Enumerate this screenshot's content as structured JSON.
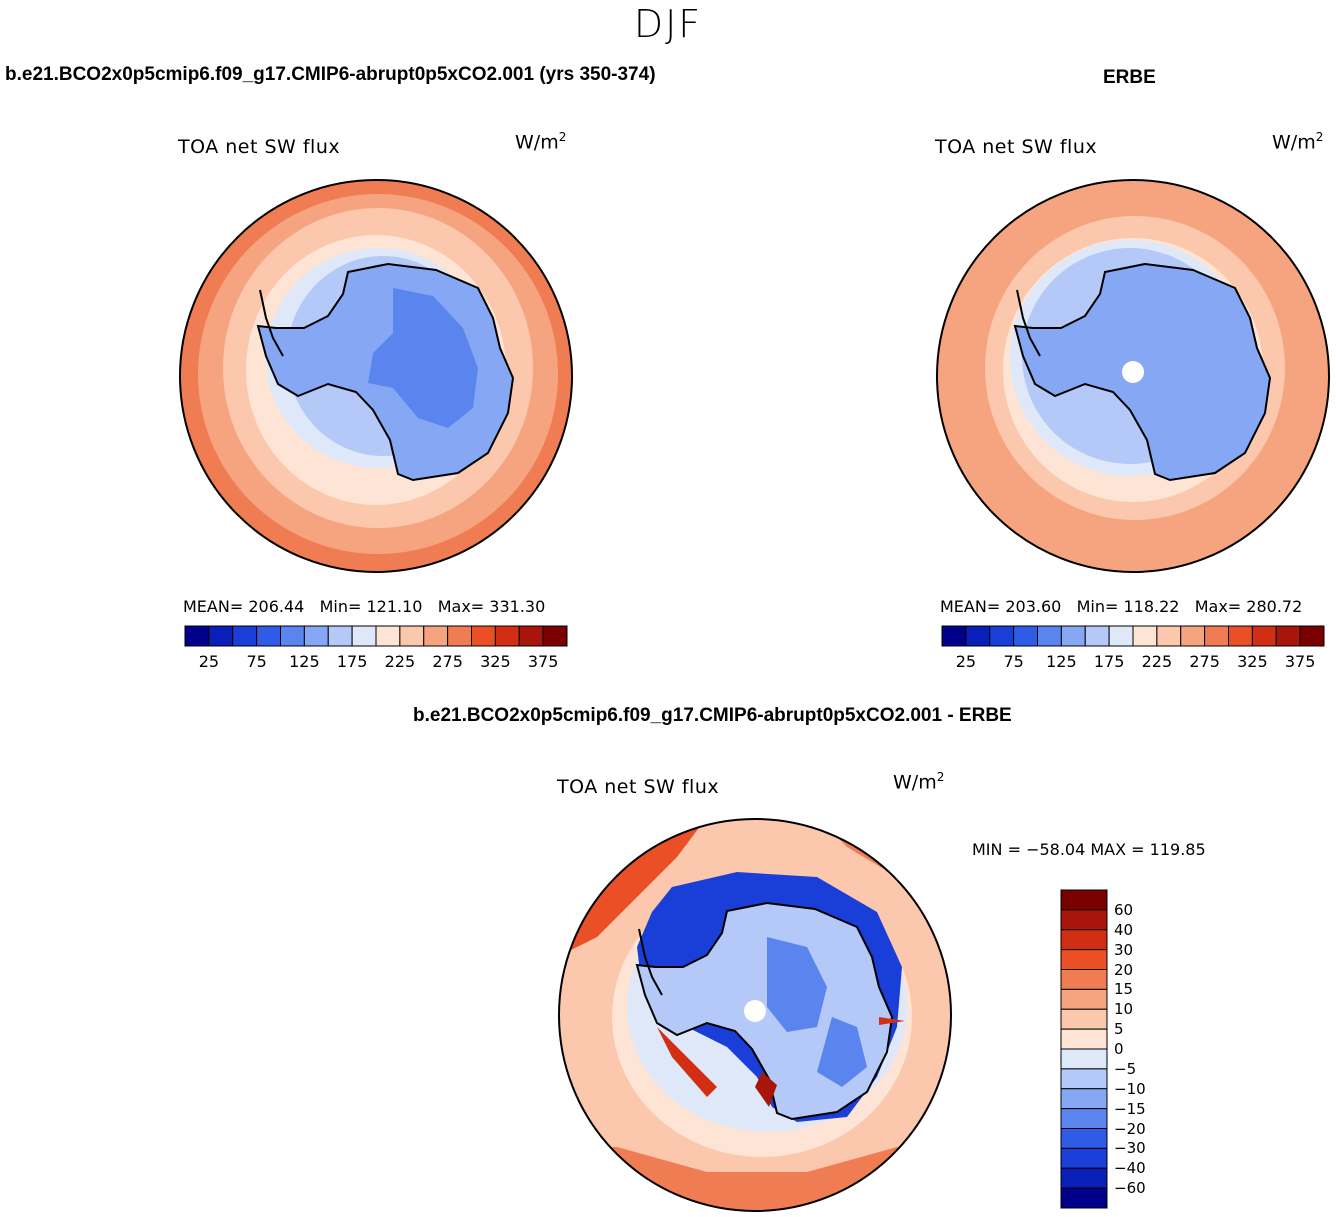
{
  "season": "DJF",
  "units": {
    "base": "W/m",
    "exp": "2"
  },
  "panels": [
    {
      "case_title": "b.e21.BCO2x0p5cmip6.f09_g17.CMIP6-abrupt0p5xCO2.001 (yrs 350-374)",
      "var_title": "TOA net SW flux",
      "stats": {
        "mean_label": "MEAN=",
        "mean": "206.44",
        "min_label": "Min=",
        "min": "121.10",
        "max_label": "Max=",
        "max": "331.30"
      }
    },
    {
      "case_title": "ERBE",
      "var_title": "TOA net SW flux",
      "stats": {
        "mean_label": "MEAN=",
        "mean": "203.60",
        "min_label": "Min=",
        "min": "118.22",
        "max_label": "Max=",
        "max": "280.72"
      }
    },
    {
      "case_title": "b.e21.BCO2x0p5cmip6.f09_g17.CMIP6-abrupt0p5xCO2.001 - ERBE",
      "var_title": "TOA net SW flux",
      "stats_text": "MIN = −58.04  MAX = 119.85"
    }
  ],
  "colorbar_main": {
    "colors": [
      "#00008b",
      "#0a1fb8",
      "#1a3fd9",
      "#2e5ce6",
      "#5a85ef",
      "#86a8f4",
      "#b4c9f7",
      "#dfe8f8",
      "#fde4d4",
      "#fbc7ad",
      "#f6a47f",
      "#f07c54",
      "#ea4f26",
      "#d12e13",
      "#a8160b",
      "#7a0000"
    ],
    "tick_labels": [
      "25",
      "75",
      "125",
      "175",
      "225",
      "275",
      "325",
      "375"
    ]
  },
  "colorbar_diff": {
    "colors": [
      "#00008b",
      "#0a1fb8",
      "#1a3fd9",
      "#2e5ce6",
      "#5a85ef",
      "#86a8f4",
      "#b4c9f7",
      "#dfe8f8",
      "#fde4d4",
      "#fbc7ad",
      "#f6a47f",
      "#f07c54",
      "#ea4f26",
      "#d12e13",
      "#a8160b",
      "#7a0000"
    ],
    "tick_labels": [
      "60",
      "40",
      "30",
      "20",
      "15",
      "10",
      "5",
      "0",
      "−5",
      "−10",
      "−15",
      "−20",
      "−30",
      "−40",
      "−60"
    ]
  },
  "chart_data": [
    {
      "type": "heatmap",
      "title": "TOA net SW flux",
      "projection": "south polar stereographic",
      "units": "W/m2",
      "levels": [
        25,
        50,
        75,
        100,
        125,
        150,
        175,
        200,
        225,
        250,
        275,
        300,
        325,
        350,
        375
      ],
      "mean": 206.44,
      "min": 121.1,
      "max": 331.3
    },
    {
      "type": "heatmap",
      "title": "TOA net SW flux",
      "projection": "south polar stereographic",
      "units": "W/m2",
      "levels": [
        25,
        50,
        75,
        100,
        125,
        150,
        175,
        200,
        225,
        250,
        275,
        300,
        325,
        350,
        375
      ],
      "mean": 203.6,
      "min": 118.22,
      "max": 280.72
    },
    {
      "type": "heatmap",
      "title": "TOA net SW flux",
      "projection": "south polar stereographic",
      "units": "W/m2",
      "levels": [
        -60,
        -40,
        -30,
        -20,
        -15,
        -10,
        -5,
        0,
        5,
        10,
        15,
        20,
        30,
        40,
        60
      ],
      "min": -58.04,
      "max": 119.85
    }
  ]
}
